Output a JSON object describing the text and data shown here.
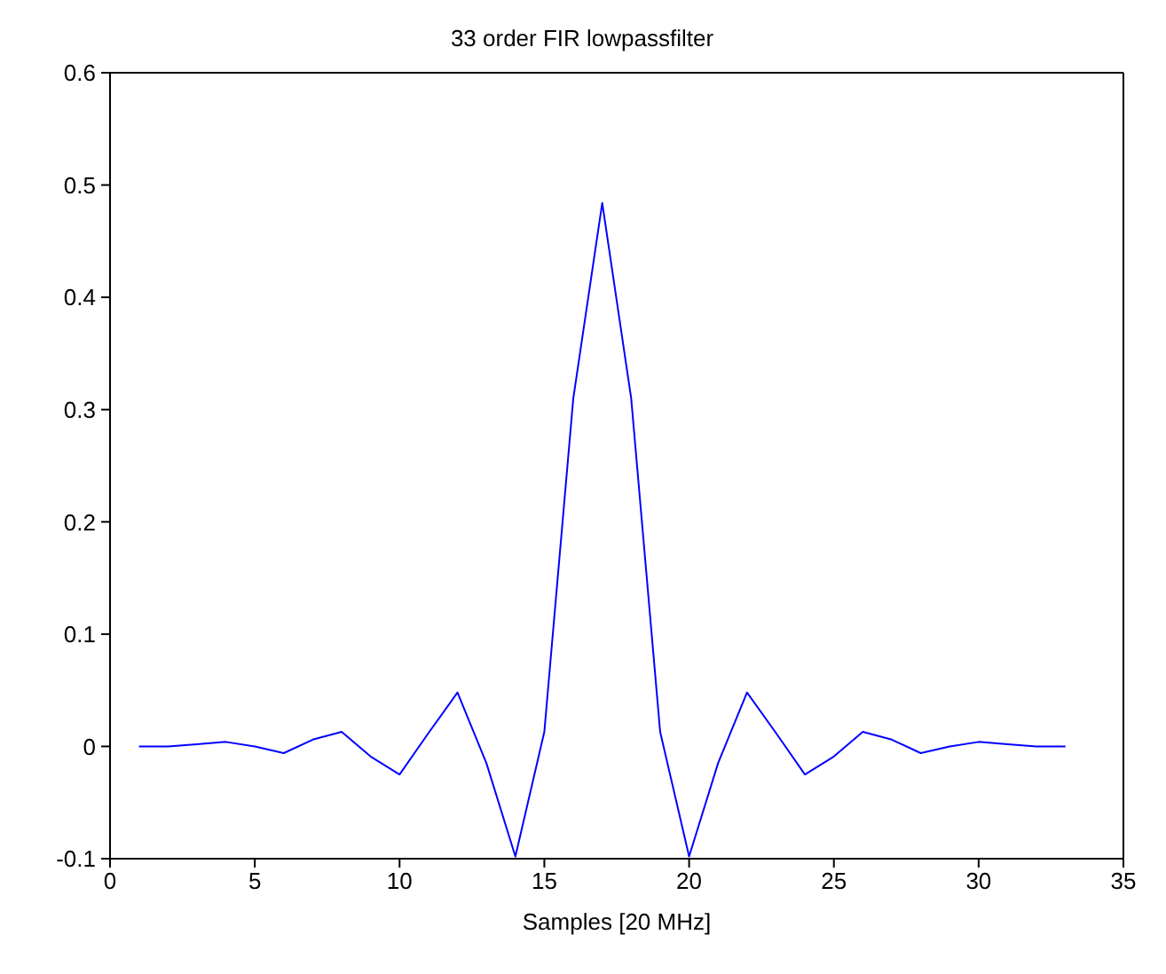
{
  "chart_data": {
    "type": "line",
    "title": "33 order FIR lowpassfilter",
    "xlabel": "Samples [20 MHz]",
    "x": [
      1,
      2,
      3,
      4,
      5,
      6,
      7,
      8,
      9,
      10,
      11,
      12,
      13,
      14,
      15,
      16,
      17,
      18,
      19,
      20,
      21,
      22,
      23,
      24,
      25,
      26,
      27,
      28,
      29,
      30,
      31,
      32,
      33
    ],
    "series": [
      {
        "color": "#0000ff",
        "values": [
          0,
          0,
          0.002,
          0.004,
          0,
          -0.006,
          0.006,
          0.013,
          -0.009,
          -0.025,
          0.012,
          0.048,
          -0.015,
          -0.098,
          0.013,
          0.31,
          0.484,
          0.31,
          0.013,
          -0.098,
          -0.015,
          0.048,
          0.012,
          -0.025,
          -0.009,
          0.013,
          0.006,
          -0.006,
          0,
          0.004,
          0.002,
          0,
          0
        ]
      }
    ],
    "xlim": [
      0,
      35
    ],
    "xticks": [
      0,
      5,
      10,
      15,
      20,
      25,
      30,
      35
    ],
    "ylim": [
      -0.1,
      0.6
    ],
    "yticks": [
      -0.1,
      0,
      0.1,
      0.2,
      0.3,
      0.4,
      0.5,
      0.6
    ],
    "grid": false,
    "legend": false,
    "marker": "none",
    "line_style": "solid"
  }
}
